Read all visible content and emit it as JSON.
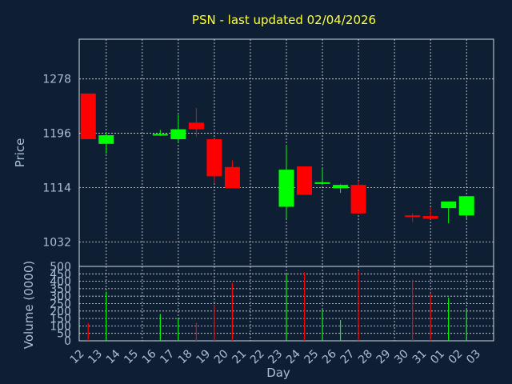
{
  "chart_data": [
    {
      "type": "candlestick",
      "title": "PSN - last updated 02/04/2026",
      "ylabel": "Price",
      "ylim": [
        995,
        1338
      ],
      "yticks": [
        1032,
        1114,
        1196,
        1278
      ],
      "grid": true,
      "colors": {
        "up": "#00ff00",
        "down": "#ff0000",
        "background": "#0f1f33",
        "text": "#a9bfd8",
        "title": "#ffff33"
      },
      "candles": [
        {
          "day": "12",
          "open": 1256,
          "high": 1256,
          "low": 1187,
          "close": 1187
        },
        {
          "day": "13",
          "open": 1180,
          "high": 1198,
          "low": 1165,
          "close": 1193
        },
        {
          "day": "16",
          "open": 1194,
          "high": 1201,
          "low": 1192,
          "close": 1195
        },
        {
          "day": "17",
          "open": 1187,
          "high": 1224,
          "low": 1183,
          "close": 1202
        },
        {
          "day": "18",
          "open": 1212,
          "high": 1234,
          "low": 1191,
          "close": 1202
        },
        {
          "day": "19",
          "open": 1187,
          "high": 1187,
          "low": 1120,
          "close": 1131
        },
        {
          "day": "20",
          "open": 1145,
          "high": 1155,
          "low": 1113,
          "close": 1113
        },
        {
          "day": "23",
          "open": 1085,
          "high": 1178,
          "low": 1067,
          "close": 1141
        },
        {
          "day": "24",
          "open": 1146,
          "high": 1146,
          "low": 1103,
          "close": 1103
        },
        {
          "day": "25",
          "open": 1120,
          "high": 1144,
          "low": 1118,
          "close": 1122
        },
        {
          "day": "26",
          "open": 1113,
          "high": 1119,
          "low": 1106,
          "close": 1118
        },
        {
          "day": "27",
          "open": 1118,
          "high": 1124,
          "low": 1075,
          "close": 1075
        },
        {
          "day": "30",
          "open": 1072,
          "high": 1075,
          "low": 1062,
          "close": 1070
        },
        {
          "day": "31",
          "open": 1071,
          "high": 1084,
          "low": 1066,
          "close": 1067
        },
        {
          "day": "01",
          "open": 1083,
          "high": 1093,
          "low": 1060,
          "close": 1093
        },
        {
          "day": "02",
          "open": 1072,
          "high": 1101,
          "low": 1067,
          "close": 1101
        }
      ]
    },
    {
      "type": "bar",
      "ylabel": "Volume (0000)",
      "xlabel": "Day",
      "ylim": [
        0,
        500
      ],
      "yticks": [
        0,
        50,
        100,
        150,
        200,
        250,
        300,
        350,
        400,
        450,
        500
      ],
      "grid": true,
      "categories": [
        "12",
        "13",
        "14",
        "15",
        "16",
        "17",
        "18",
        "19",
        "20",
        "21",
        "22",
        "23",
        "24",
        "25",
        "26",
        "27",
        "28",
        "29",
        "30",
        "31",
        "01",
        "02",
        "03"
      ],
      "volumes": [
        {
          "day": "12",
          "value": 120,
          "color": "#ff0000"
        },
        {
          "day": "13",
          "value": 330,
          "color": "#00ff00"
        },
        {
          "day": "16",
          "value": 180,
          "color": "#00ff00"
        },
        {
          "day": "17",
          "value": 150,
          "color": "#00ff00"
        },
        {
          "day": "18",
          "value": 120,
          "color": "#ff0000"
        },
        {
          "day": "19",
          "value": 240,
          "color": "#ff0000"
        },
        {
          "day": "20",
          "value": 390,
          "color": "#ff0000"
        },
        {
          "day": "23",
          "value": 450,
          "color": "#00ff00"
        },
        {
          "day": "24",
          "value": 460,
          "color": "#ff0000"
        },
        {
          "day": "25",
          "value": 210,
          "color": "#00ff00"
        },
        {
          "day": "26",
          "value": 140,
          "color": "#00ff00"
        },
        {
          "day": "27",
          "value": 470,
          "color": "#ff0000"
        },
        {
          "day": "30",
          "value": 410,
          "color": "#ff0000"
        },
        {
          "day": "31",
          "value": 320,
          "color": "#ff0000"
        },
        {
          "day": "01",
          "value": 290,
          "color": "#00ff00"
        },
        {
          "day": "02",
          "value": 210,
          "color": "#00ff00"
        }
      ]
    }
  ]
}
